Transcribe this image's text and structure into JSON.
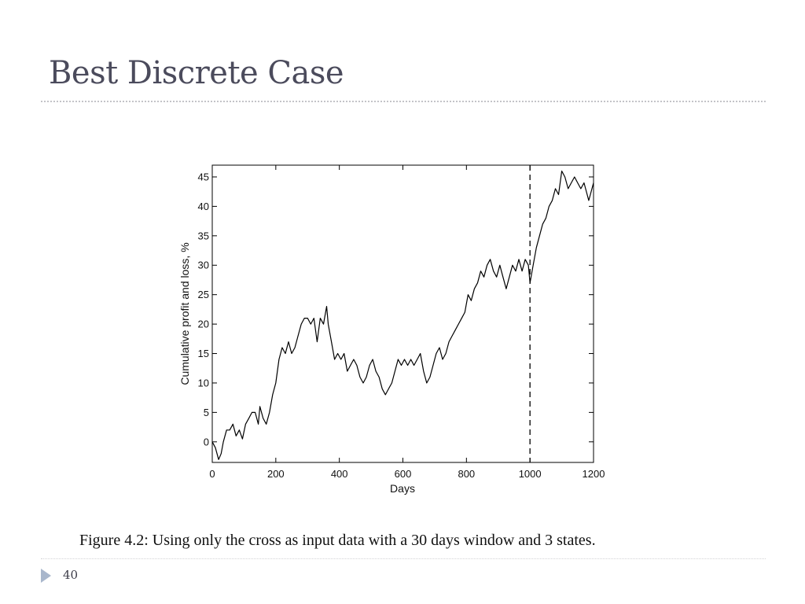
{
  "slide": {
    "title": "Best Discrete Case",
    "caption": "Figure 4.2: Using only the cross as input data with a 30 days window and 3 states.",
    "page_number": "40"
  },
  "chart_data": {
    "type": "line",
    "title": "",
    "xlabel": "Days",
    "ylabel": "Cumulative profit and loss, %",
    "xlim": [
      0,
      1200
    ],
    "ylim": [
      -3.5,
      47
    ],
    "xticks": [
      0,
      200,
      400,
      600,
      800,
      1000,
      1200
    ],
    "yticks": [
      0,
      5,
      10,
      15,
      20,
      25,
      30,
      35,
      40,
      45
    ],
    "grid": false,
    "legend": "none",
    "line_color": "#000000",
    "vline": {
      "x": 1000,
      "style": "dashed"
    },
    "series": [
      {
        "x": [
          0,
          10,
          20,
          28,
          35,
          45,
          55,
          65,
          75,
          85,
          95,
          105,
          115,
          125,
          135,
          145,
          150,
          160,
          170,
          180,
          190,
          200,
          210,
          220,
          230,
          240,
          250,
          260,
          270,
          280,
          290,
          300,
          310,
          320,
          330,
          340,
          350,
          360,
          365,
          375,
          385,
          395,
          405,
          415,
          425,
          435,
          445,
          455,
          465,
          475,
          485,
          495,
          505,
          515,
          525,
          535,
          545,
          555,
          565,
          575,
          585,
          595,
          605,
          615,
          625,
          635,
          645,
          655,
          665,
          675,
          685,
          695,
          705,
          715,
          725,
          735,
          745,
          755,
          765,
          775,
          785,
          795,
          805,
          815,
          825,
          835,
          845,
          855,
          865,
          875,
          885,
          895,
          905,
          915,
          925,
          935,
          945,
          955,
          965,
          975,
          985,
          995,
          1000,
          1010,
          1020,
          1030,
          1040,
          1050,
          1060,
          1070,
          1080,
          1090,
          1100,
          1110,
          1120,
          1130,
          1140,
          1150,
          1160,
          1170,
          1180,
          1185,
          1190,
          1195,
          1200
        ],
        "y": [
          0,
          -1,
          -3,
          -2,
          0,
          2,
          2,
          3,
          1,
          2,
          0.5,
          3,
          4,
          5,
          5,
          3,
          6,
          4,
          3,
          5,
          8,
          10,
          14,
          16,
          15,
          17,
          15,
          16,
          18,
          20,
          21,
          21,
          20,
          21,
          17,
          21,
          20,
          23,
          20,
          17,
          14,
          15,
          14,
          15,
          12,
          13,
          14,
          13,
          11,
          10,
          11,
          13,
          14,
          12,
          11,
          9,
          8,
          9,
          10,
          12,
          14,
          13,
          14,
          13,
          14,
          13,
          14,
          15,
          12,
          10,
          11,
          13,
          15,
          16,
          14,
          15,
          17,
          18,
          19,
          20,
          21,
          22,
          25,
          24,
          26,
          27,
          29,
          28,
          30,
          31,
          29,
          28,
          30,
          28,
          26,
          28,
          30,
          29,
          31,
          29,
          31,
          30,
          27,
          30,
          33,
          35,
          37,
          38,
          40,
          41,
          43,
          42,
          46,
          45,
          43,
          44,
          45,
          44,
          43,
          44,
          42,
          41,
          42,
          43,
          44
        ]
      }
    ]
  }
}
